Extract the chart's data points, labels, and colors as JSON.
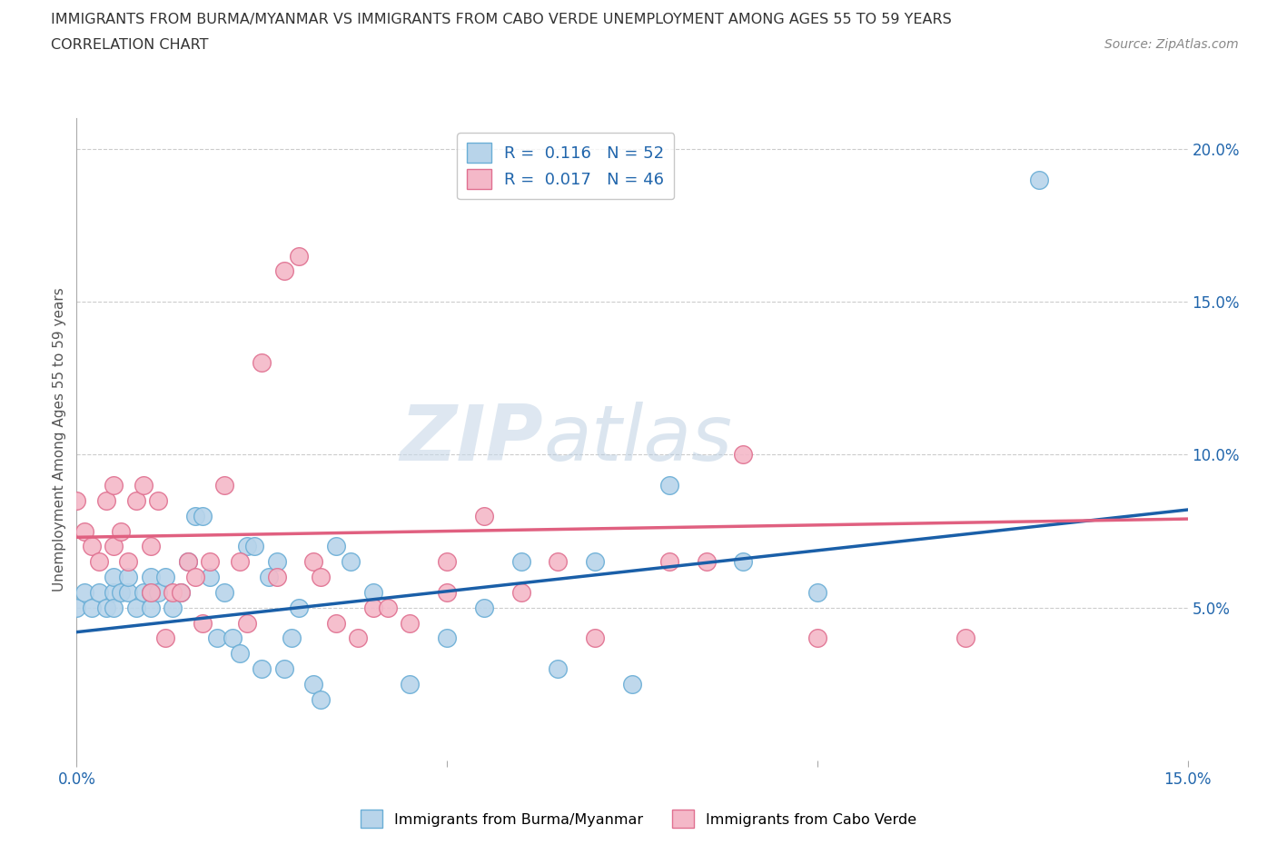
{
  "title_line1": "IMMIGRANTS FROM BURMA/MYANMAR VS IMMIGRANTS FROM CABO VERDE UNEMPLOYMENT AMONG AGES 55 TO 59 YEARS",
  "title_line2": "CORRELATION CHART",
  "source_text": "Source: ZipAtlas.com",
  "ylabel": "Unemployment Among Ages 55 to 59 years",
  "xlim": [
    0.0,
    0.15
  ],
  "ylim": [
    0.0,
    0.21
  ],
  "series1_color": "#b8d4ea",
  "series1_edge": "#6aaed6",
  "series2_color": "#f4b8c8",
  "series2_edge": "#e07090",
  "line1_color": "#1a5fa8",
  "line2_color": "#e06080",
  "R1": 0.116,
  "N1": 52,
  "R2": 0.017,
  "N2": 46,
  "legend_label1": "Immigrants from Burma/Myanmar",
  "legend_label2": "Immigrants from Cabo Verde",
  "watermark": "ZIPatlas",
  "background_color": "#ffffff",
  "grid_color": "#cccccc",
  "scatter1_x": [
    0.0,
    0.001,
    0.002,
    0.003,
    0.004,
    0.005,
    0.005,
    0.005,
    0.006,
    0.007,
    0.007,
    0.008,
    0.009,
    0.01,
    0.01,
    0.01,
    0.011,
    0.012,
    0.013,
    0.014,
    0.015,
    0.016,
    0.017,
    0.018,
    0.019,
    0.02,
    0.021,
    0.022,
    0.023,
    0.024,
    0.025,
    0.026,
    0.027,
    0.028,
    0.029,
    0.03,
    0.032,
    0.033,
    0.035,
    0.037,
    0.04,
    0.045,
    0.05,
    0.055,
    0.06,
    0.065,
    0.07,
    0.075,
    0.08,
    0.09,
    0.1,
    0.13
  ],
  "scatter1_y": [
    0.05,
    0.055,
    0.05,
    0.055,
    0.05,
    0.055,
    0.06,
    0.05,
    0.055,
    0.055,
    0.06,
    0.05,
    0.055,
    0.055,
    0.06,
    0.05,
    0.055,
    0.06,
    0.05,
    0.055,
    0.065,
    0.08,
    0.08,
    0.06,
    0.04,
    0.055,
    0.04,
    0.035,
    0.07,
    0.07,
    0.03,
    0.06,
    0.065,
    0.03,
    0.04,
    0.05,
    0.025,
    0.02,
    0.07,
    0.065,
    0.055,
    0.025,
    0.04,
    0.05,
    0.065,
    0.03,
    0.065,
    0.025,
    0.09,
    0.065,
    0.055,
    0.19
  ],
  "scatter2_x": [
    0.0,
    0.001,
    0.002,
    0.003,
    0.004,
    0.005,
    0.005,
    0.006,
    0.007,
    0.008,
    0.009,
    0.01,
    0.01,
    0.011,
    0.012,
    0.013,
    0.014,
    0.015,
    0.016,
    0.017,
    0.018,
    0.02,
    0.022,
    0.023,
    0.025,
    0.027,
    0.028,
    0.03,
    0.032,
    0.033,
    0.035,
    0.038,
    0.04,
    0.042,
    0.045,
    0.05,
    0.05,
    0.055,
    0.06,
    0.065,
    0.07,
    0.08,
    0.085,
    0.09,
    0.1,
    0.12
  ],
  "scatter2_y": [
    0.085,
    0.075,
    0.07,
    0.065,
    0.085,
    0.09,
    0.07,
    0.075,
    0.065,
    0.085,
    0.09,
    0.055,
    0.07,
    0.085,
    0.04,
    0.055,
    0.055,
    0.065,
    0.06,
    0.045,
    0.065,
    0.09,
    0.065,
    0.045,
    0.13,
    0.06,
    0.16,
    0.165,
    0.065,
    0.06,
    0.045,
    0.04,
    0.05,
    0.05,
    0.045,
    0.055,
    0.065,
    0.08,
    0.055,
    0.065,
    0.04,
    0.065,
    0.065,
    0.1,
    0.04,
    0.04
  ],
  "line1_x0": 0.0,
  "line1_y0": 0.042,
  "line1_x1": 0.15,
  "line1_y1": 0.082,
  "line2_x0": 0.0,
  "line2_y0": 0.073,
  "line2_x1": 0.15,
  "line2_y1": 0.079
}
